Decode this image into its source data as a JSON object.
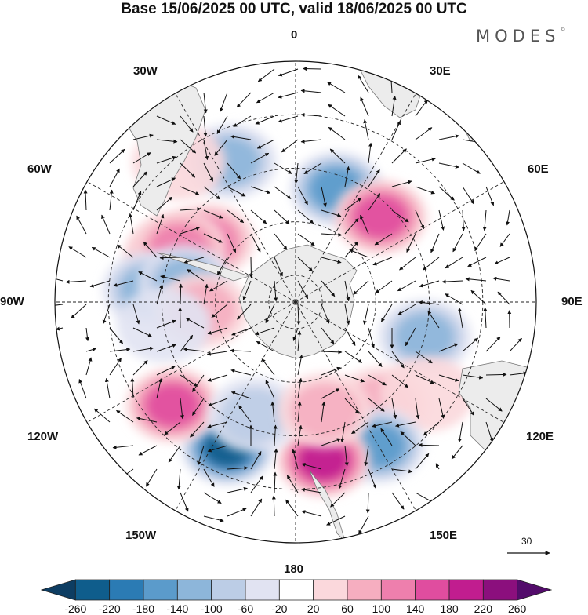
{
  "title": "Base 15/06/2025 00 UTC, valid 18/06/2025 00 UTC",
  "brand": "MODES",
  "brand_mark": "©",
  "projection": "south-polar-stereographic",
  "longitude_labels": [
    "0",
    "30E",
    "60E",
    "90E",
    "120E",
    "150E",
    "180",
    "150W",
    "120W",
    "90W",
    "60W",
    "30W"
  ],
  "reference_vector_label": "30",
  "colorbar": {
    "ticks": [
      "-260",
      "-220",
      "-180",
      "-140",
      "-100",
      "-60",
      "-20",
      "20",
      "60",
      "100",
      "140",
      "180",
      "220",
      "260"
    ],
    "colors": [
      "#0d3d62",
      "#0f5d8c",
      "#2b7bb4",
      "#5b9bcb",
      "#8db6da",
      "#bccde6",
      "#e1e3f2",
      "#ffffff",
      "#fbd8dc",
      "#f6aec0",
      "#ee7fad",
      "#e04d9f",
      "#c11d8f",
      "#8b0f7d",
      "#530c6b"
    ]
  },
  "colors": {
    "land": "#e9e9e9",
    "coast": "#777777",
    "grid": "#222222",
    "arrow": "#111111"
  },
  "map_data": {
    "anomalies": [
      {
        "lon": -25,
        "lat": -32,
        "value": -110
      },
      {
        "lon": -40,
        "lat": -22,
        "value": 40
      },
      {
        "lon": -70,
        "lat": -40,
        "value": 120
      },
      {
        "lon": -55,
        "lat": -50,
        "value": 120
      },
      {
        "lon": -65,
        "lat": -42,
        "value": 100
      },
      {
        "lon": -85,
        "lat": -35,
        "value": -130
      },
      {
        "lon": -80,
        "lat": -48,
        "value": -120
      },
      {
        "lon": -95,
        "lat": -55,
        "value": 80
      },
      {
        "lon": -100,
        "lat": -40,
        "value": -40
      },
      {
        "lon": 20,
        "lat": -45,
        "value": -160
      },
      {
        "lon": 45,
        "lat": -45,
        "value": 140
      },
      {
        "lon": 105,
        "lat": -40,
        "value": -120
      },
      {
        "lon": 140,
        "lat": -40,
        "value": 80
      },
      {
        "lon": 125,
        "lat": -30,
        "value": 40
      },
      {
        "lon": 150,
        "lat": -28,
        "value": -160
      },
      {
        "lon": 170,
        "lat": -30,
        "value": 200
      },
      {
        "lon": -155,
        "lat": -30,
        "value": -240
      },
      {
        "lon": -130,
        "lat": -30,
        "value": 140
      },
      {
        "lon": -160,
        "lat": -45,
        "value": -60
      },
      {
        "lon": 165,
        "lat": -48,
        "value": 80
      }
    ]
  }
}
